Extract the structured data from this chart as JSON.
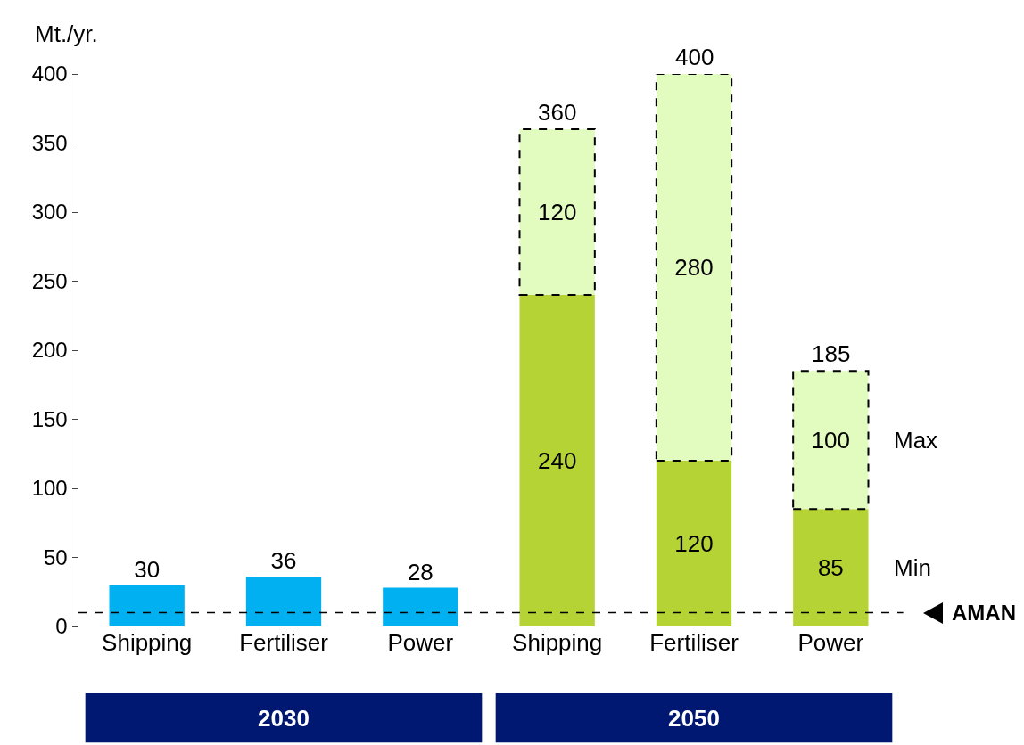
{
  "chart_data": {
    "type": "bar",
    "ylabel": "Mt./yr.",
    "categories": [
      "Shipping",
      "Fertiliser",
      "Power",
      "Shipping",
      "Fertiliser",
      "Power"
    ],
    "series": [
      {
        "color": "#00b0f0",
        "values": [
          30,
          36,
          28,
          null,
          null,
          null
        ]
      },
      {
        "name": "Min",
        "color": "#b5d334",
        "values": [
          null,
          null,
          null,
          240,
          120,
          85
        ]
      },
      {
        "name": "Max",
        "color": "#e2fbbf",
        "line_style": "dashed",
        "values": [
          null,
          null,
          null,
          120,
          280,
          100
        ]
      }
    ],
    "stacked": true,
    "data_labels": true,
    "totals": [
      null,
      null,
      null,
      "360",
      "400",
      "185"
    ],
    "ylim": [
      0,
      400
    ],
    "yticks": [
      0,
      50,
      100,
      150,
      200,
      250,
      300,
      350,
      400
    ],
    "grid": false,
    "legend": false,
    "ref_lines": [
      {
        "axis": "y",
        "value": 10,
        "label": "AMAN",
        "line_style": "dashed",
        "color": "#000000"
      }
    ],
    "annotations": [
      "2030",
      "2050"
    ]
  }
}
